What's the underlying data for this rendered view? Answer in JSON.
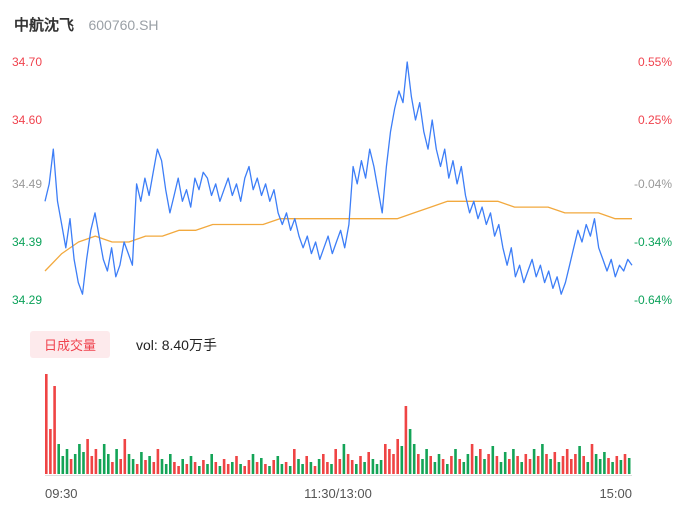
{
  "header": {
    "title": "中航沈飞",
    "code": "600760.SH"
  },
  "volume_header": {
    "badge": "日成交量",
    "label": "vol: 8.40万手"
  },
  "colors": {
    "up": "#f0434e",
    "down": "#0ca25a",
    "neutral": "#999999",
    "price_line": "#3d7ef7",
    "avg_line": "#f2a93e",
    "badge_bg": "#fdeaec",
    "badge_text": "#f0434e",
    "vol_up": "#ef4444",
    "vol_down": "#14a457",
    "baseline": "#dddddd"
  },
  "chart_data": {
    "type": "line",
    "title": "中航沈飞 600760.SH 分时走势",
    "x_ticks": [
      "09:30",
      "11:30/13:00",
      "15:00"
    ],
    "axis_left": [
      "34.70",
      "34.60",
      "34.49",
      "34.39",
      "34.29"
    ],
    "axis_right": [
      "0.55%",
      "0.25%",
      "-0.04%",
      "-0.34%",
      "-0.64%"
    ],
    "axis_color_keys": [
      "up",
      "up",
      "neutral",
      "down",
      "down"
    ],
    "ylim": [
      34.29,
      34.7
    ],
    "legend_position": "none",
    "grid": false,
    "series": [
      {
        "name": "price",
        "color_key": "price_line",
        "values": [
          34.46,
          34.49,
          34.55,
          34.46,
          34.42,
          34.38,
          34.43,
          34.36,
          34.32,
          34.3,
          34.36,
          34.41,
          34.44,
          34.4,
          34.36,
          34.34,
          34.38,
          34.33,
          34.35,
          34.39,
          34.37,
          34.35,
          34.49,
          34.46,
          34.5,
          34.47,
          34.51,
          34.55,
          34.53,
          34.48,
          34.44,
          34.47,
          34.5,
          34.46,
          34.48,
          34.45,
          34.5,
          34.48,
          34.51,
          34.5,
          34.47,
          34.49,
          34.46,
          34.48,
          34.5,
          34.47,
          34.49,
          34.46,
          34.5,
          34.52,
          34.48,
          34.5,
          34.47,
          34.49,
          34.46,
          34.48,
          34.44,
          34.42,
          34.44,
          34.41,
          34.43,
          34.4,
          34.38,
          34.4,
          34.37,
          34.39,
          34.36,
          34.38,
          34.4,
          34.37,
          34.39,
          34.41,
          34.38,
          34.42,
          34.52,
          34.49,
          34.53,
          34.5,
          34.55,
          34.52,
          34.48,
          34.44,
          34.52,
          34.58,
          34.62,
          34.65,
          34.63,
          34.7,
          34.64,
          34.6,
          34.63,
          34.58,
          34.55,
          34.6,
          34.55,
          34.52,
          34.55,
          34.5,
          34.53,
          34.49,
          34.52,
          34.47,
          34.44,
          34.46,
          34.43,
          34.45,
          34.42,
          34.44,
          34.4,
          34.42,
          34.38,
          34.35,
          34.38,
          34.33,
          34.35,
          34.32,
          34.34,
          34.36,
          34.33,
          34.35,
          34.32,
          34.34,
          34.31,
          34.33,
          34.3,
          34.32,
          34.35,
          34.38,
          34.41,
          34.39,
          34.42,
          34.4,
          34.43,
          34.38,
          34.36,
          34.34,
          34.36,
          34.33,
          34.35,
          34.34,
          34.36,
          34.35
        ]
      },
      {
        "name": "avg",
        "color_key": "avg_line",
        "values": [
          34.34,
          34.37,
          34.39,
          34.4,
          34.39,
          34.39,
          34.4,
          34.4,
          34.41,
          34.41,
          34.42,
          34.42,
          34.42,
          34.42,
          34.43,
          34.43,
          34.43,
          34.43,
          34.43,
          34.43,
          34.43,
          34.43,
          34.44,
          34.45,
          34.46,
          34.46,
          34.46,
          34.46,
          34.45,
          34.45,
          34.45,
          34.44,
          34.44,
          34.44,
          34.43,
          34.43
        ]
      }
    ],
    "volume": {
      "name": "volume",
      "unit": "万手",
      "values": [
        100,
        45,
        88,
        30,
        18,
        25,
        15,
        20,
        30,
        22,
        35,
        18,
        25,
        15,
        30,
        20,
        12,
        25,
        15,
        35,
        20,
        15,
        10,
        22,
        14,
        18,
        12,
        25,
        15,
        10,
        20,
        12,
        8,
        15,
        10,
        18,
        12,
        8,
        14,
        10,
        20,
        12,
        8,
        15,
        10,
        12,
        18,
        10,
        8,
        14,
        20,
        12,
        16,
        10,
        8,
        14,
        18,
        10,
        12,
        8,
        25,
        15,
        10,
        18,
        12,
        8,
        15,
        20,
        12,
        10,
        25,
        15,
        30,
        20,
        14,
        10,
        18,
        12,
        22,
        15,
        10,
        14,
        30,
        25,
        20,
        35,
        28,
        68,
        45,
        30,
        20,
        15,
        25,
        18,
        12,
        20,
        15,
        10,
        18,
        25,
        15,
        12,
        20,
        30,
        18,
        25,
        15,
        20,
        28,
        18,
        12,
        22,
        15,
        25,
        18,
        12,
        20,
        15,
        25,
        18,
        30,
        20,
        15,
        22,
        12,
        18,
        25,
        15,
        20,
        28,
        18,
        12,
        30,
        20,
        15,
        22,
        16,
        12,
        18,
        14,
        20,
        16
      ]
    }
  }
}
